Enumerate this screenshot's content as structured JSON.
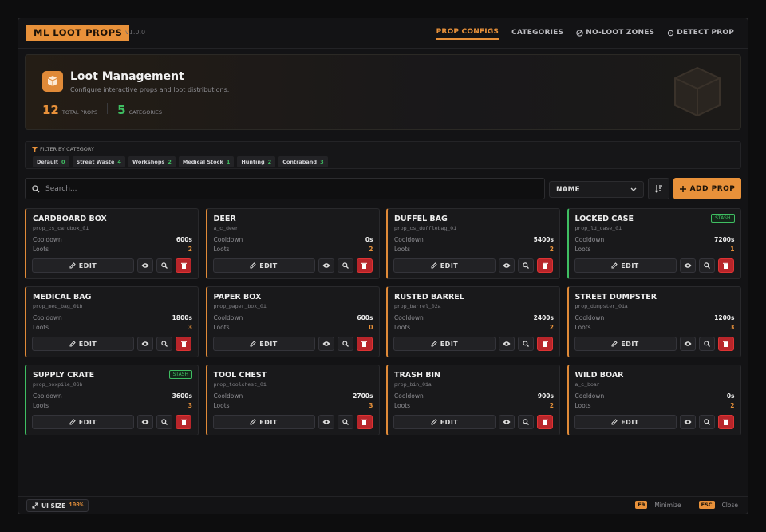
{
  "header": {
    "logo": "ML LOOT PROPS",
    "version": "v1.0.0",
    "nav": [
      "PROP CONFIGS",
      "CATEGORIES",
      "NO-LOOT ZONES",
      "DETECT PROP"
    ]
  },
  "hero": {
    "title": "Loot Management",
    "subtitle": "Configure interactive props and loot distributions.",
    "stats": [
      {
        "value": 12,
        "label": "TOTAL PROPS"
      },
      {
        "value": 5,
        "label": "CATEGORIES"
      }
    ]
  },
  "filter": {
    "title": "FILTER BY CATEGORY",
    "chips": [
      {
        "name": "Default",
        "count": 0
      },
      {
        "name": "Street Waste",
        "count": 4
      },
      {
        "name": "Workshops",
        "count": 2
      },
      {
        "name": "Medical Stock",
        "count": 1
      },
      {
        "name": "Hunting",
        "count": 2
      },
      {
        "name": "Contraband",
        "count": 3
      }
    ]
  },
  "toolbar": {
    "search_placeholder": "Search...",
    "sort": "NAME",
    "add": "ADD PROP"
  },
  "labels": {
    "cooldown": "Cooldown",
    "loots": "Loots",
    "edit": "EDIT",
    "stash": "STASH"
  },
  "cards": [
    {
      "name": "CARDBOARD BOX",
      "code": "prop_cs_cardbox_01",
      "cooldown": "600s",
      "loots": 2,
      "stash": false
    },
    {
      "name": "DEER",
      "code": "a_c_deer",
      "cooldown": "0s",
      "loots": 2,
      "stash": false
    },
    {
      "name": "DUFFEL BAG",
      "code": "prop_cs_dufflebag_01",
      "cooldown": "5400s",
      "loots": 2,
      "stash": false
    },
    {
      "name": "LOCKED CASE",
      "code": "prop_ld_case_01",
      "cooldown": "7200s",
      "loots": 1,
      "stash": true
    },
    {
      "name": "MEDICAL BAG",
      "code": "prop_med_bag_01b",
      "cooldown": "1800s",
      "loots": 3,
      "stash": false
    },
    {
      "name": "PAPER BOX",
      "code": "prop_paper_box_01",
      "cooldown": "600s",
      "loots": 0,
      "stash": false
    },
    {
      "name": "RUSTED BARREL",
      "code": "prop_barrel_02a",
      "cooldown": "2400s",
      "loots": 2,
      "stash": false
    },
    {
      "name": "STREET DUMPSTER",
      "code": "prop_dumpster_01a",
      "cooldown": "1200s",
      "loots": 3,
      "stash": false
    },
    {
      "name": "SUPPLY CRATE",
      "code": "prop_boxpile_06b",
      "cooldown": "3600s",
      "loots": 3,
      "stash": true
    },
    {
      "name": "TOOL CHEST",
      "code": "prop_toolchest_01",
      "cooldown": "2700s",
      "loots": 3,
      "stash": false
    },
    {
      "name": "TRASH BIN",
      "code": "prop_bin_01a",
      "cooldown": "900s",
      "loots": 2,
      "stash": false
    },
    {
      "name": "WILD BOAR",
      "code": "a_c_boar",
      "cooldown": "0s",
      "loots": 2,
      "stash": false
    }
  ],
  "footer": {
    "ui_size_label": "UI SIZE",
    "ui_size_value": "100%",
    "keys": [
      {
        "key": "F9",
        "action": "Minimize"
      },
      {
        "key": "ESC",
        "action": "Close"
      }
    ]
  }
}
